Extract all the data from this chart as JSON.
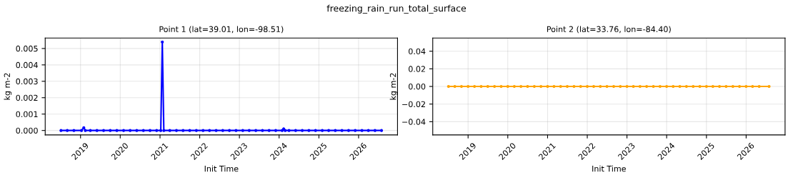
{
  "chart_data": [
    {
      "type": "line",
      "title": "Point 1 (lat=39.01, lon=-98.51)",
      "annotations": [
        "freezing_rain_run_total_surface"
      ],
      "xlabel": "Init Time",
      "ylabel": "kg m-2",
      "marker": "circle",
      "line_style": "solid",
      "grid": true,
      "x": [
        "2018-07-05",
        "2018-09-01",
        "2018-11-01",
        "2019-01-10",
        "2019-01-31",
        "2019-02-14",
        "2019-04-01",
        "2019-06-01",
        "2019-08-01",
        "2019-10-01",
        "2019-12-01",
        "2020-02-01",
        "2020-04-01",
        "2020-06-01",
        "2020-08-01",
        "2020-10-01",
        "2020-12-01",
        "2021-01-08",
        "2021-01-22",
        "2021-02-05",
        "2021-04-01",
        "2021-06-01",
        "2021-08-01",
        "2021-10-01",
        "2021-12-01",
        "2022-02-01",
        "2022-04-01",
        "2022-06-01",
        "2022-08-01",
        "2022-10-01",
        "2022-12-01",
        "2023-02-01",
        "2023-04-01",
        "2023-06-01",
        "2023-08-01",
        "2023-10-01",
        "2023-12-01",
        "2024-01-29",
        "2024-02-12",
        "2024-02-26",
        "2024-04-01",
        "2024-06-01",
        "2024-08-01",
        "2024-10-01",
        "2024-12-01",
        "2025-02-01",
        "2025-04-01",
        "2025-06-01",
        "2025-08-01",
        "2025-10-01",
        "2025-12-01",
        "2026-02-01",
        "2026-04-01",
        "2026-06-01",
        "2026-07-31"
      ],
      "series": [
        {
          "color": "#0000ff",
          "values": [
            0,
            0,
            0,
            0,
            0.00017,
            0,
            0,
            0,
            0,
            0,
            0,
            0,
            0,
            0,
            0,
            0,
            0,
            0,
            0.0054,
            0,
            0,
            0,
            0,
            0,
            0,
            0,
            0,
            0,
            0,
            0,
            0,
            0,
            0,
            0,
            0,
            0,
            0,
            0,
            0.0001,
            0,
            0,
            0,
            0,
            0,
            0,
            0,
            0,
            0,
            0,
            0,
            0,
            0,
            0,
            0,
            0
          ]
        }
      ],
      "xlim": [
        "2018-02-10",
        "2026-12-25"
      ],
      "xticks": [
        {
          "value": "2019-01-01",
          "label": "2019"
        },
        {
          "value": "2020-01-01",
          "label": "2020"
        },
        {
          "value": "2021-01-01",
          "label": "2021"
        },
        {
          "value": "2022-01-01",
          "label": "2022"
        },
        {
          "value": "2023-01-01",
          "label": "2023"
        },
        {
          "value": "2024-01-01",
          "label": "2024"
        },
        {
          "value": "2025-01-01",
          "label": "2025"
        },
        {
          "value": "2026-01-01",
          "label": "2026"
        }
      ],
      "ylim": [
        -0.00027,
        0.00564
      ],
      "yticks": [
        {
          "value": 0,
          "label": "0.000"
        },
        {
          "value": 0.001,
          "label": "0.001"
        },
        {
          "value": 0.002,
          "label": "0.002"
        },
        {
          "value": 0.003,
          "label": "0.003"
        },
        {
          "value": 0.004,
          "label": "0.004"
        },
        {
          "value": 0.005,
          "label": "0.005"
        }
      ]
    },
    {
      "type": "line",
      "title": "Point 2 (lat=33.76, lon=-84.40)",
      "xlabel": "Init Time",
      "ylabel": "kg m-2",
      "marker": "circle",
      "line_style": "solid",
      "grid": true,
      "x": [
        "2018-07-05",
        "2018-09-01",
        "2018-11-01",
        "2019-01-01",
        "2019-03-01",
        "2019-05-01",
        "2019-07-01",
        "2019-09-01",
        "2019-11-01",
        "2020-01-01",
        "2020-03-01",
        "2020-05-01",
        "2020-07-01",
        "2020-09-01",
        "2020-11-01",
        "2021-01-01",
        "2021-03-01",
        "2021-05-01",
        "2021-07-01",
        "2021-09-01",
        "2021-11-01",
        "2022-01-01",
        "2022-03-01",
        "2022-05-01",
        "2022-07-01",
        "2022-09-01",
        "2022-11-01",
        "2023-01-01",
        "2023-03-01",
        "2023-05-01",
        "2023-07-01",
        "2023-09-01",
        "2023-11-01",
        "2024-01-01",
        "2024-03-01",
        "2024-05-01",
        "2024-07-01",
        "2024-09-01",
        "2024-11-01",
        "2025-01-01",
        "2025-03-01",
        "2025-05-01",
        "2025-07-01",
        "2025-09-01",
        "2025-11-01",
        "2026-01-01",
        "2026-03-01",
        "2026-05-01",
        "2026-07-31"
      ],
      "series": [
        {
          "color": "#ffa500",
          "values": [
            0,
            0,
            0,
            0,
            0,
            0,
            0,
            0,
            0,
            0,
            0,
            0,
            0,
            0,
            0,
            0,
            0,
            0,
            0,
            0,
            0,
            0,
            0,
            0,
            0,
            0,
            0,
            0,
            0,
            0,
            0,
            0,
            0,
            0,
            0,
            0,
            0,
            0,
            0,
            0,
            0,
            0,
            0,
            0,
            0,
            0,
            0,
            0,
            0
          ]
        }
      ],
      "xlim": [
        "2018-02-10",
        "2026-12-25"
      ],
      "xticks": [
        {
          "value": "2019-01-01",
          "label": "2019"
        },
        {
          "value": "2020-01-01",
          "label": "2020"
        },
        {
          "value": "2021-01-01",
          "label": "2021"
        },
        {
          "value": "2022-01-01",
          "label": "2022"
        },
        {
          "value": "2023-01-01",
          "label": "2023"
        },
        {
          "value": "2024-01-01",
          "label": "2024"
        },
        {
          "value": "2025-01-01",
          "label": "2025"
        },
        {
          "value": "2026-01-01",
          "label": "2026"
        }
      ],
      "ylim": [
        -0.055,
        0.055
      ],
      "yticks": [
        {
          "value": -0.04,
          "label": "−0.04"
        },
        {
          "value": -0.02,
          "label": "−0.02"
        },
        {
          "value": 0,
          "label": "0.00"
        },
        {
          "value": 0.02,
          "label": "0.02"
        },
        {
          "value": 0.04,
          "label": "0.04"
        }
      ]
    }
  ]
}
